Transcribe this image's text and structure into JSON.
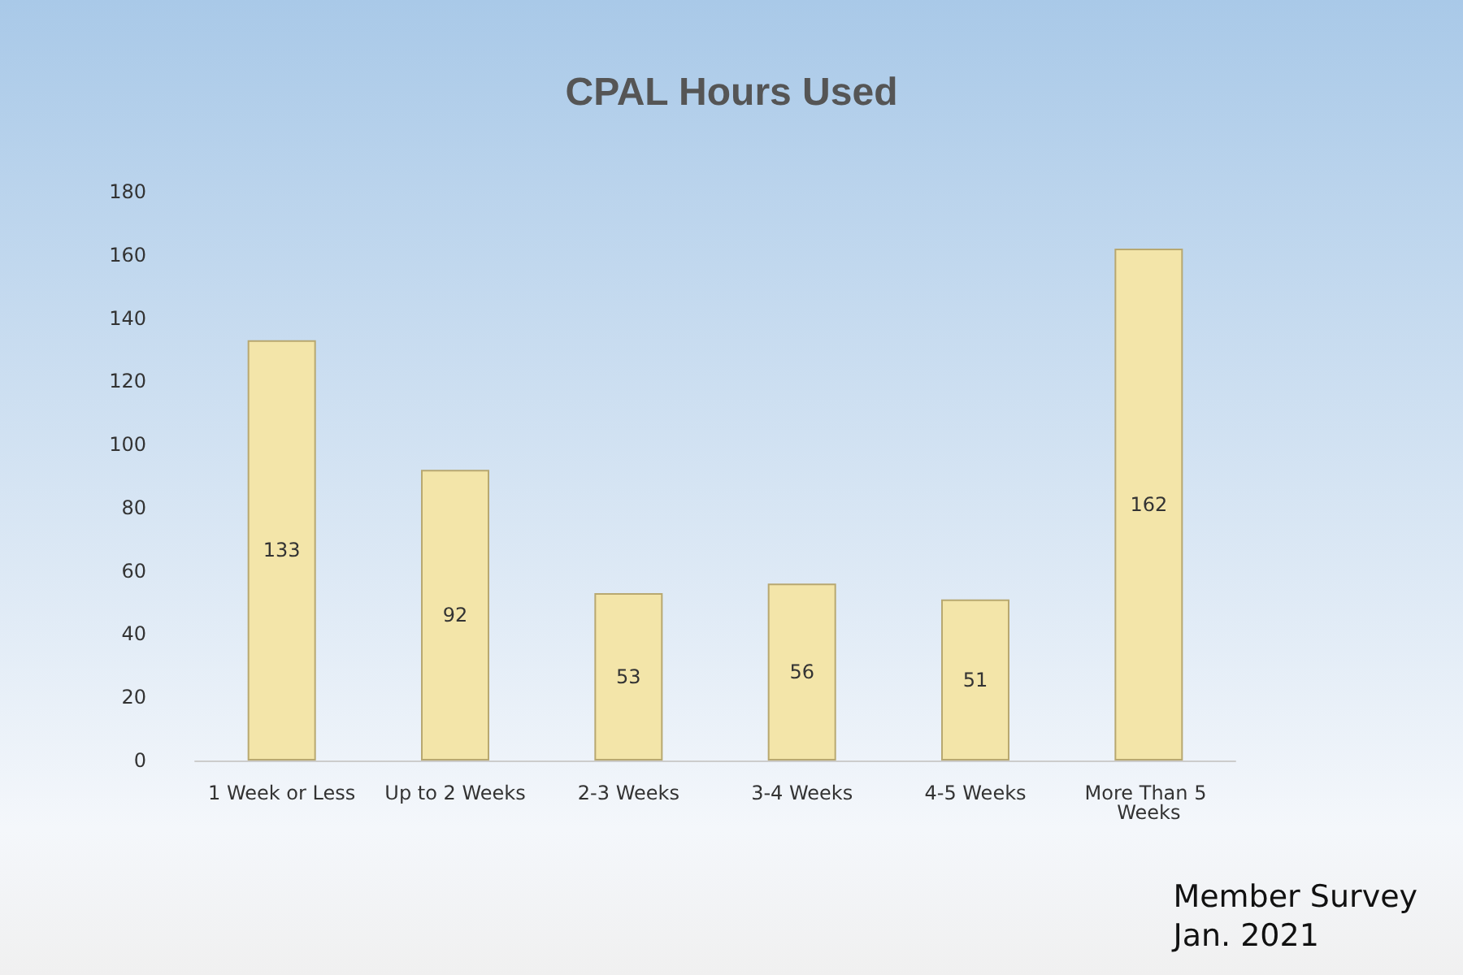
{
  "chart_data": {
    "type": "bar",
    "title": "CPAL Hours Used",
    "categories": [
      "1 Week or Less",
      "Up to 2 Weeks",
      "2-3 Weeks",
      "3-4 Weeks",
      "4-5 Weeks",
      "More Than 5 Weeks"
    ],
    "values": [
      133,
      92,
      53,
      56,
      51,
      162
    ],
    "color": "#f3e5a9",
    "ylim": [
      0,
      180
    ],
    "yticks": [
      0,
      20,
      40,
      60,
      80,
      100,
      120,
      140,
      160,
      180
    ],
    "grid": false,
    "data_labels": true,
    "annotations": [
      "Member Survey\nJan. 2021"
    ]
  }
}
